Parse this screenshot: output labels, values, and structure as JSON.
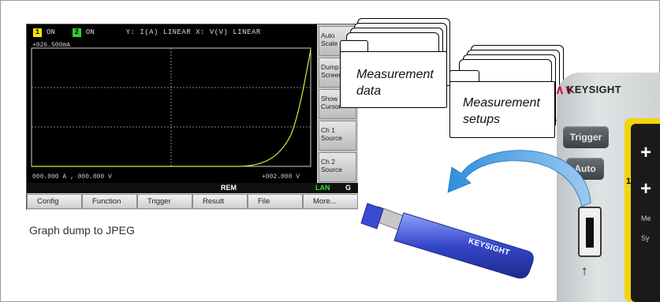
{
  "screen": {
    "status": {
      "ch1_num": "1",
      "ch1_state": "ON",
      "ch2_num": "2",
      "ch2_state": "ON",
      "axis_mode": "Y: I(A)  LINEAR X: V(V)  LINEAR"
    },
    "plot": {
      "y_max_label": "+026.500mA",
      "x_min_label": "000.000 A , 000.000 V",
      "x_max_label": "+002.000 V",
      "trace_color": "#e8e040"
    },
    "softkeys": [
      {
        "label": "Auto\nScale"
      },
      {
        "label": "Dump\nScreen"
      },
      {
        "label": "Show\nCursor"
      },
      {
        "label": "Ch 1\nSource"
      },
      {
        "label": "Ch 2\nSource"
      }
    ],
    "remote": {
      "rem": "REM",
      "lan": "LAN",
      "g": "G"
    },
    "menu": [
      "Config",
      "Function",
      "Trigger",
      "Result",
      "File",
      "More..."
    ]
  },
  "caption": "Graph dump to JPEG",
  "folders": {
    "data_label_line1": "Measurement",
    "data_label_line2": "data",
    "setups_label_line1": "Measurement",
    "setups_label_line2": "setups"
  },
  "device": {
    "brand": "KEYSIGHT",
    "trigger_btn": "Trigger",
    "auto_btn": "Auto",
    "channel_num": "1",
    "text_a": "Me",
    "text_b": "Sy"
  },
  "usb_stick": {
    "brand": "KEYSIGHT"
  },
  "colors": {
    "accent_blue": "#2e8fe0",
    "keysight_red": "#c8102e",
    "panel_yellow": "#f2d40d"
  }
}
